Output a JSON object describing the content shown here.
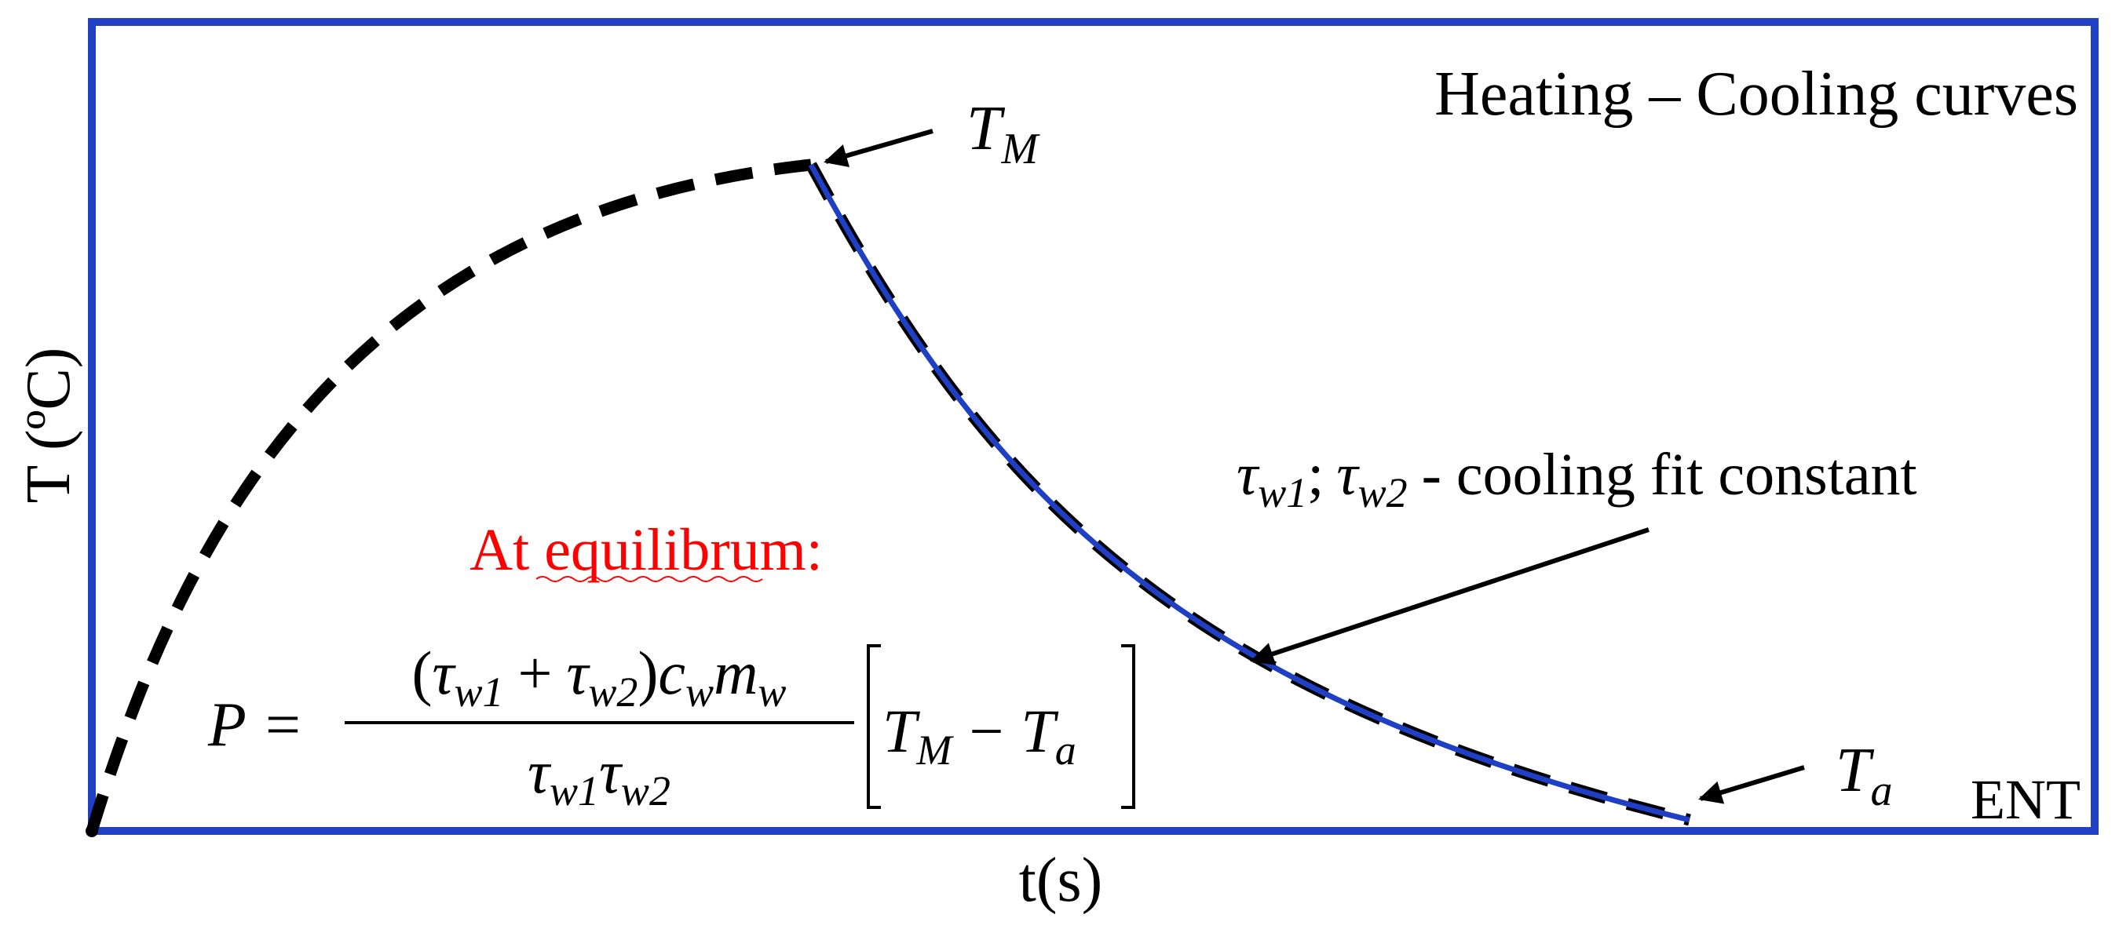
{
  "diagram": {
    "title": "Heating – Cooling curves",
    "x_axis_label": "t(s)",
    "y_axis_label": "T (ºC)",
    "corner_label": "ENT"
  },
  "annotations": {
    "peak": {
      "symbol": "T",
      "subscript": "M"
    },
    "ambient": {
      "symbol": "T",
      "subscript": "a"
    },
    "fit_note": {
      "constant_1": {
        "symbol": "τ",
        "subscript": "w1"
      },
      "separator": ";",
      "constant_2": {
        "symbol": "τ",
        "subscript": "w2"
      },
      "description": "- cooling fit constant"
    }
  },
  "equation": {
    "heading": "At equilibrum:",
    "lhs": "P",
    "equals": "=",
    "numerator": {
      "open": "(",
      "term_1": {
        "symbol": "τ",
        "subscript": "w1"
      },
      "plus": "+",
      "term_2": {
        "symbol": "τ",
        "subscript": "w2"
      },
      "close": ")",
      "factor_1": {
        "symbol": "c",
        "subscript": "w"
      },
      "factor_2": {
        "symbol": "m",
        "subscript": "w"
      }
    },
    "denominator": {
      "term_1": {
        "symbol": "τ",
        "subscript": "w1"
      },
      "term_2": {
        "symbol": "τ",
        "subscript": "w2"
      }
    },
    "bracket": {
      "term_1": {
        "symbol": "T",
        "subscript": "M"
      },
      "minus": "−",
      "term_2": {
        "symbol": "T",
        "subscript": "a"
      }
    }
  }
}
